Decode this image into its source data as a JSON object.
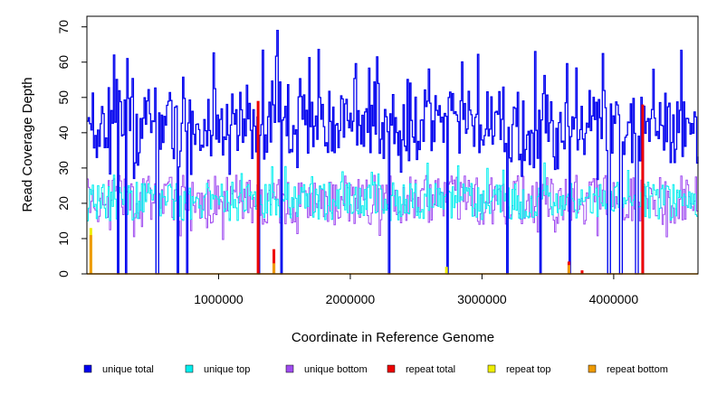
{
  "chart_data": {
    "type": "line",
    "xlabel": "Coordinate in Reference Genome",
    "ylabel": "Read Coverage Depth",
    "xlim": [
      96,
      4640000
    ],
    "ylim": [
      0,
      73
    ],
    "x_ticks": [
      1000000,
      2000000,
      3000000,
      4000000
    ],
    "x_tick_labels": [
      "1000000",
      "2000000",
      "3000000",
      "4000000"
    ],
    "y_ticks": [
      0,
      10,
      20,
      30,
      40,
      50,
      60,
      70
    ],
    "y_tick_labels": [
      "0",
      "10",
      "20",
      "30",
      "40",
      "50",
      "60",
      "70"
    ],
    "legend_position": "bottom",
    "series": [
      {
        "name": "unique total",
        "color": "#0000ee",
        "typical_range": [
          30,
          52
        ],
        "peaks": [
          62,
          61,
          69,
          63,
          58
        ]
      },
      {
        "name": "unique top",
        "color": "#00eeee",
        "typical_range": [
          12,
          26
        ]
      },
      {
        "name": "unique bottom",
        "color": "#a04cf0",
        "typical_range": [
          12,
          28
        ]
      },
      {
        "name": "repeat total",
        "color": "#ee0000",
        "spikes": [
          [
            1300000,
            49
          ],
          [
            1420000,
            7
          ],
          [
            3660000,
            3.5
          ],
          [
            3760000,
            1
          ],
          [
            4220000,
            48
          ]
        ]
      },
      {
        "name": "repeat top",
        "color": "#eeee00",
        "spikes": [
          [
            30000,
            13
          ],
          [
            2730000,
            2
          ]
        ]
      },
      {
        "name": "repeat bottom",
        "color": "#ee9a00",
        "spikes": [
          [
            30000,
            11
          ],
          [
            1420000,
            3
          ],
          [
            3660000,
            2.5
          ]
        ]
      }
    ],
    "coverage_dropouts": [
      230000,
      290000,
      530000,
      690000,
      760000,
      1300000,
      1470000,
      2290000,
      2730000,
      3190000,
      3440000,
      3660000,
      3960000,
      4050000,
      4170000,
      4220000
    ]
  }
}
